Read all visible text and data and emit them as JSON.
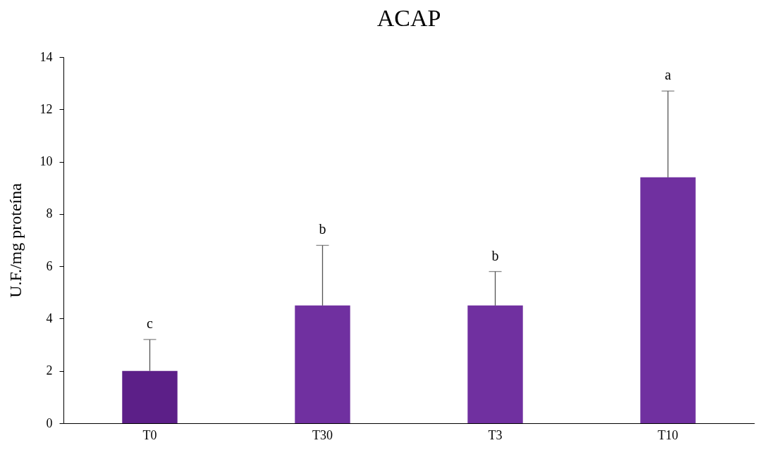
{
  "chart_data": {
    "type": "bar",
    "title": "ACAP",
    "ylabel": "U.F./mg proteína",
    "categories": [
      "T0",
      "T30",
      "T3",
      "T10"
    ],
    "values": [
      2.0,
      4.5,
      4.5,
      9.4
    ],
    "colors": [
      "#5c1f88",
      "#7030a0",
      "#7030a0",
      "#7030a0"
    ],
    "errors": [
      [
        2.0,
        3.2
      ],
      [
        4.5,
        6.8
      ],
      [
        4.5,
        5.8
      ],
      [
        9.4,
        12.7
      ]
    ],
    "annotations": [
      {
        "text": "c",
        "x": "T0",
        "y": 3.2
      },
      {
        "text": "b",
        "x": "T30",
        "y": 6.8
      },
      {
        "text": "b",
        "x": "T3",
        "y": 5.8
      },
      {
        "text": "a",
        "x": "T10",
        "y": 12.7
      }
    ],
    "ylim": [
      0,
      14
    ],
    "yticks": [
      0,
      2,
      4,
      6,
      8,
      10,
      12,
      14
    ]
  }
}
